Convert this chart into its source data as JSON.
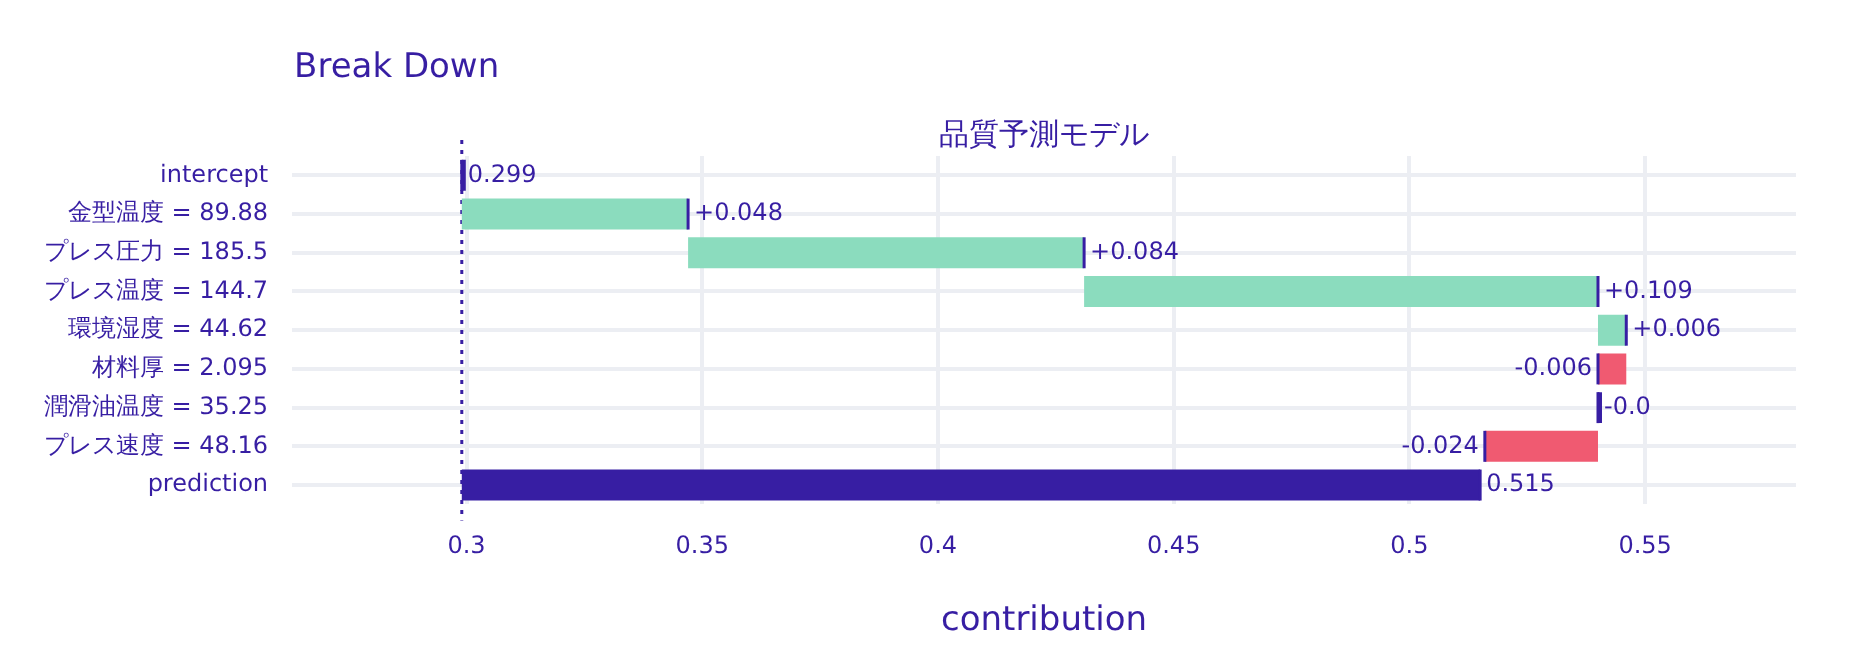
{
  "chart_data": {
    "type": "bar",
    "orientation": "horizontal",
    "title": "Break Down",
    "subtitle": "品質予測モデル",
    "xlabel": "contribution",
    "categories": [
      "intercept",
      "金型温度 = 89.88",
      "プレス圧力 = 185.5",
      "プレス温度 = 144.7",
      "環境湿度 = 44.62",
      "材料厚 = 2.095",
      "潤滑油温度 = 35.25",
      "プレス速度 = 48.16",
      "prediction"
    ],
    "base": [
      0.299,
      0.299,
      0.347,
      0.431,
      0.54,
      0.546,
      0.54,
      0.54,
      0.299
    ],
    "values": [
      0,
      0.048,
      0.084,
      0.109,
      0.006,
      -0.006,
      0,
      -0.024,
      0.216
    ],
    "colors": [
      "#371ea3",
      "#8bdcbe",
      "#8bdcbe",
      "#8bdcbe",
      "#8bdcbe",
      "#f05a71",
      "#371ea3",
      "#f05a71",
      "#371ea3"
    ],
    "value_labels": [
      "0.299",
      "+0.048",
      "+0.084",
      "+0.109",
      "+0.006",
      "-0.006",
      "-0.0",
      "-0.024",
      "0.515"
    ],
    "xlim": [
      0.263,
      0.582
    ],
    "xticks": [
      0.3,
      0.35,
      0.4,
      0.45,
      0.5,
      0.55
    ],
    "ref_lines": [
      {
        "axis": "x",
        "value": 0.299,
        "color": "#371ea3",
        "line_style": "dotted"
      }
    ],
    "grid": true,
    "legend": false
  }
}
